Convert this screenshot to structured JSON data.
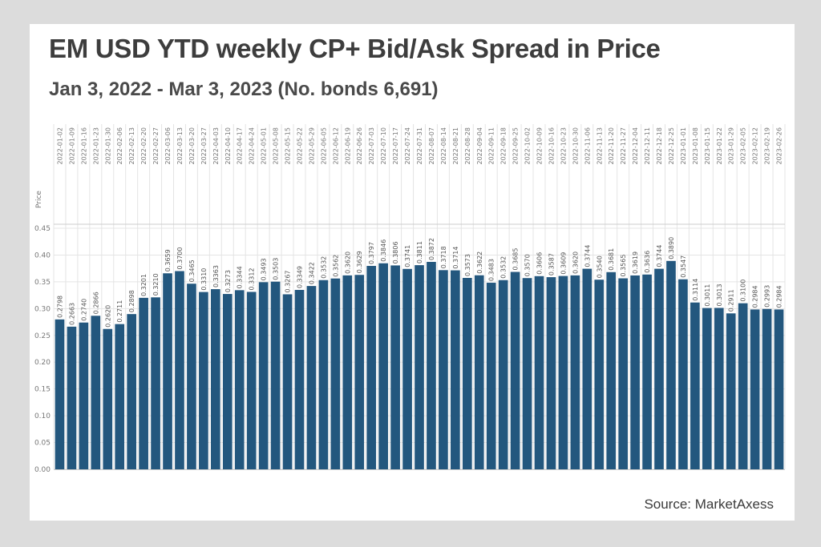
{
  "header": {
    "title": "EM USD YTD weekly CP+ Bid/Ask Spread in Price",
    "subtitle": "Jan 3, 2022 - Mar 3, 2023 (No. bonds 6,691)"
  },
  "footer": {
    "source": "Source: MarketAxess"
  },
  "colors": {
    "bar": "#23577e",
    "grid": "#e4e4e4",
    "text": "#777777"
  },
  "chart_data": {
    "type": "bar",
    "ylabel": "Price",
    "ylim": [
      0,
      0.45
    ],
    "yticks": [
      "0.00",
      "0.05",
      "0.10",
      "0.15",
      "0.20",
      "0.25",
      "0.30",
      "0.35",
      "0.40",
      "0.45"
    ],
    "categories": [
      "2022-01-02",
      "2022-01-09",
      "2022-01-16",
      "2022-01-23",
      "2022-01-30",
      "2022-02-06",
      "2022-02-13",
      "2022-02-20",
      "2022-02-27",
      "2022-03-06",
      "2022-03-13",
      "2022-03-20",
      "2022-03-27",
      "2022-04-03",
      "2022-04-10",
      "2022-04-17",
      "2022-04-24",
      "2022-05-01",
      "2022-05-08",
      "2022-05-15",
      "2022-05-22",
      "2022-05-29",
      "2022-06-05",
      "2022-06-12",
      "2022-06-19",
      "2022-06-26",
      "2022-07-03",
      "2022-07-10",
      "2022-07-17",
      "2022-07-24",
      "2022-07-31",
      "2022-08-07",
      "2022-08-14",
      "2022-08-21",
      "2022-08-28",
      "2022-09-04",
      "2022-09-11",
      "2022-09-18",
      "2022-09-25",
      "2022-10-02",
      "2022-10-09",
      "2022-10-16",
      "2022-10-23",
      "2022-10-30",
      "2022-11-06",
      "2022-11-13",
      "2022-11-20",
      "2022-11-27",
      "2022-12-04",
      "2022-12-11",
      "2022-12-18",
      "2022-12-25",
      "2023-01-01",
      "2023-01-08",
      "2023-01-15",
      "2023-01-22",
      "2023-01-29",
      "2023-02-05",
      "2023-02-12",
      "2023-02-19",
      "2023-02-26"
    ],
    "values": [
      0.2798,
      0.2663,
      0.274,
      0.2866,
      0.262,
      0.2711,
      0.2898,
      0.3201,
      0.321,
      0.3659,
      0.37,
      0.3465,
      0.331,
      0.3363,
      0.3273,
      0.3344,
      0.3312,
      0.3493,
      0.3503,
      0.3267,
      0.3349,
      0.3422,
      0.3532,
      0.3562,
      0.362,
      0.3629,
      0.3797,
      0.3846,
      0.3806,
      0.3741,
      0.3811,
      0.3872,
      0.3718,
      0.3714,
      0.3573,
      0.3622,
      0.3483,
      0.3532,
      0.3685,
      0.357,
      0.3606,
      0.3587,
      0.3609,
      0.362,
      0.3744,
      0.354,
      0.3681,
      0.3565,
      0.3619,
      0.3636,
      0.3744,
      0.389,
      0.3547,
      0.3114,
      0.3011,
      0.3013,
      0.2911,
      0.31,
      0.2984,
      0.2993,
      0.2984
    ],
    "value_labels": [
      "0.2798",
      "0.2663",
      "0.2740",
      "0.2866",
      "0.2620",
      "0.2711",
      "0.2898",
      "0.3201",
      "0.3210",
      "0.3659",
      "0.3700",
      "0.3465",
      "0.3310",
      "0.3363",
      "0.3273",
      "0.3344",
      "0.3312",
      "0.3493",
      "0.3503",
      "0.3267",
      "0.3349",
      "0.3422",
      "0.3532",
      "0.3562",
      "0.3620",
      "0.3629",
      "0.3797",
      "0.3846",
      "0.3806",
      "0.3741",
      "0.3811",
      "0.3872",
      "0.3718",
      "0.3714",
      "0.3573",
      "0.3622",
      "0.3483",
      "0.3532",
      "0.3685",
      "0.3570",
      "0.3606",
      "0.3587",
      "0.3609",
      "0.3620",
      "0.3744",
      "0.3540",
      "0.3681",
      "0.3565",
      "0.3619",
      "0.3636",
      "0.3744",
      "0.3890",
      "0.3547",
      "0.3114",
      "0.3011",
      "0.3013",
      "0.2911",
      "0.3100",
      "0.2984",
      "0.2993",
      "0.2984"
    ],
    "grid": true,
    "legend": "none"
  }
}
